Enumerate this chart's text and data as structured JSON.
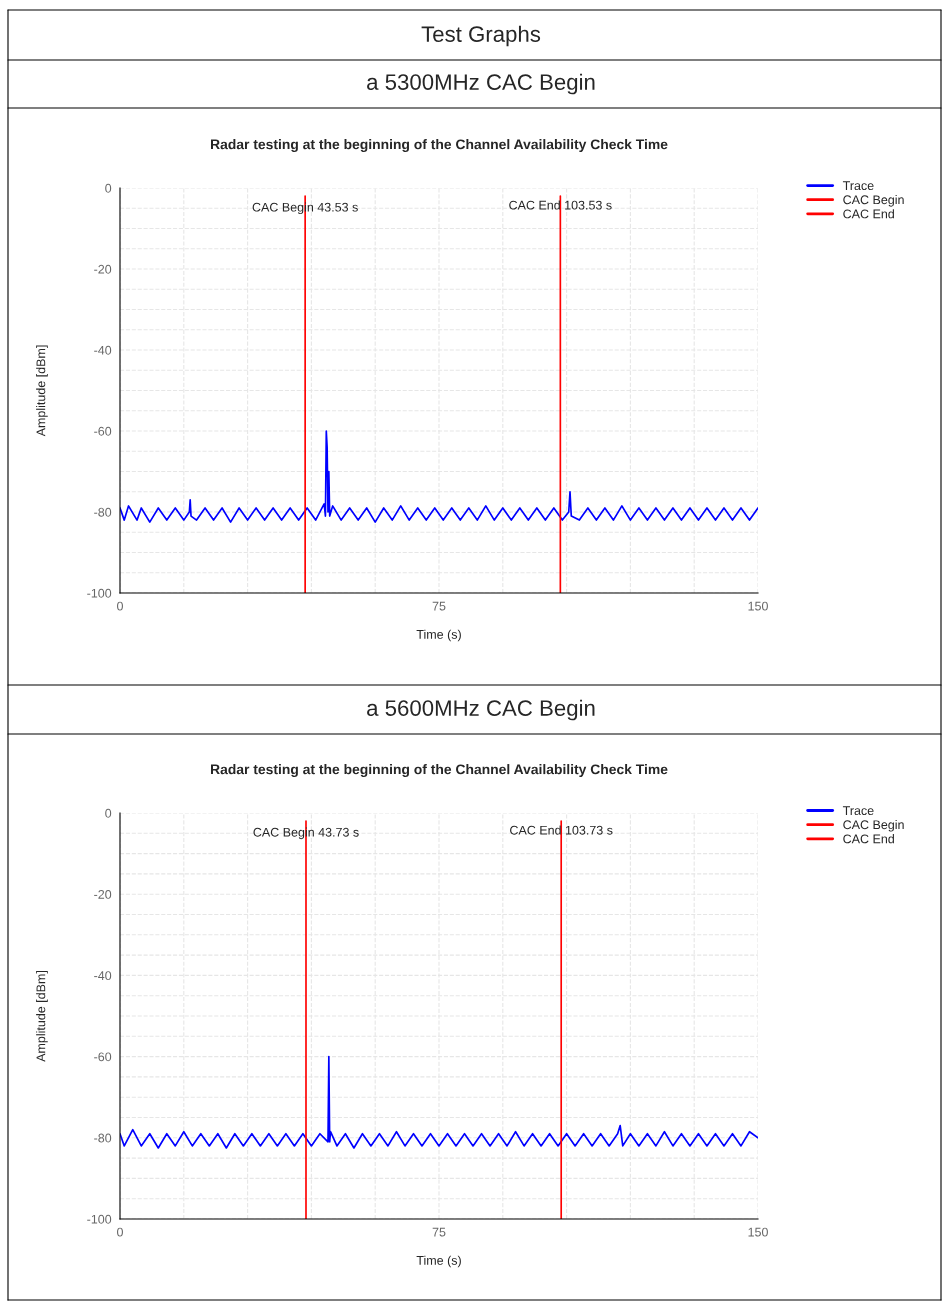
{
  "chart_data": [
    {
      "type": "line",
      "title": "Radar testing at the beginning of the Channel Availability Check Time",
      "subtitle": "a 5300MHz CAC Begin",
      "xlabel": "Time (s)",
      "ylabel": "Amplitude [dBm]",
      "annotations": [
        "Test Graphs",
        {
          "text": "CAC Begin 43.53 s",
          "x": 43.53,
          "y": -5
        },
        {
          "text": "CAC End 103.53 s",
          "x": 103.53,
          "y": -4.5
        }
      ],
      "xlim": [
        0,
        150
      ],
      "ylim": [
        -100,
        0
      ],
      "xticks": [
        0,
        {
          "value": 15,
          "label": null
        },
        {
          "value": 30,
          "label": null
        },
        {
          "value": 45,
          "label": null
        },
        {
          "value": 60,
          "label": null
        },
        75,
        {
          "value": 90,
          "label": null
        },
        {
          "value": 105,
          "label": null
        },
        {
          "value": 120,
          "label": null
        },
        {
          "value": 135,
          "label": null
        },
        150
      ],
      "yticks": [
        -100,
        {
          "value": -95,
          "label": null
        },
        {
          "value": -90,
          "label": null
        },
        {
          "value": -85,
          "label": null
        },
        -80,
        {
          "value": -75,
          "label": null
        },
        {
          "value": -70,
          "label": null
        },
        {
          "value": -65,
          "label": null
        },
        -60,
        {
          "value": -55,
          "label": null
        },
        {
          "value": -50,
          "label": null
        },
        {
          "value": -45,
          "label": null
        },
        -40,
        {
          "value": -35,
          "label": null
        },
        {
          "value": -30,
          "label": null
        },
        {
          "value": -25,
          "label": null
        },
        -20,
        {
          "value": -15,
          "label": null
        },
        {
          "value": -10,
          "label": null
        },
        {
          "value": -5,
          "label": null
        },
        0
      ],
      "grid": true,
      "legend": "top right",
      "series": [
        {
          "name": "Trace",
          "color": "#0000ff",
          "x": [
            0,
            1,
            2,
            4,
            5,
            7,
            9,
            11,
            13,
            15,
            16.3,
            16.5,
            16.7,
            18,
            20,
            22,
            24,
            26,
            28,
            30,
            32,
            34,
            36,
            38,
            40,
            42,
            44,
            46,
            47.5,
            48.0,
            48.3,
            48.5,
            48.7,
            48.9,
            49.1,
            49.3,
            50,
            52,
            54,
            56,
            58,
            60,
            62,
            64,
            66,
            68,
            70,
            72,
            74,
            76,
            78,
            80,
            82,
            84,
            86,
            88,
            90,
            92,
            94,
            96,
            98,
            100,
            102,
            104,
            105.5,
            105.8,
            106.1,
            108,
            110,
            112,
            114,
            116,
            118,
            120,
            122,
            124,
            126,
            128,
            130,
            132,
            134,
            136,
            138,
            140,
            142,
            144,
            146,
            148,
            150
          ],
          "values": [
            -79,
            -82,
            -78.5,
            -82,
            -79,
            -82.5,
            -79,
            -82,
            -79,
            -82,
            -80,
            -77,
            -81,
            -82,
            -79,
            -82,
            -79,
            -82.5,
            -79,
            -82,
            -79,
            -82,
            -79,
            -82,
            -79,
            -82,
            -79,
            -82,
            -79,
            -78,
            -81,
            -60,
            -64,
            -80,
            -70,
            -81,
            -78.5,
            -82,
            -79,
            -82,
            -79,
            -82.5,
            -79,
            -82,
            -78.5,
            -82,
            -79,
            -82,
            -79,
            -82,
            -79,
            -82,
            -79,
            -82,
            -78.5,
            -82,
            -79,
            -82,
            -79,
            -82,
            -79,
            -82,
            -79,
            -82,
            -80,
            -75,
            -81,
            -82,
            -79,
            -82,
            -79,
            -82,
            -78.5,
            -82,
            -79,
            -82,
            -79,
            -82,
            -79,
            -82,
            -79,
            -82,
            -79,
            -82,
            -79,
            -82,
            -79,
            -82,
            -79
          ]
        },
        {
          "name": "CAC Begin",
          "color": "#ff0000",
          "x": [
            43.53,
            43.53
          ],
          "values": [
            -2,
            -100
          ]
        },
        {
          "name": "CAC End",
          "color": "#ff0000",
          "x": [
            103.53,
            103.53
          ],
          "values": [
            -2,
            -100
          ]
        }
      ]
    },
    {
      "type": "line",
      "title": "Radar testing at the beginning of the Channel Availability Check Time",
      "subtitle": "a 5600MHz CAC Begin",
      "xlabel": "Time (s)",
      "ylabel": "Amplitude [dBm]",
      "annotations": [
        {
          "text": "CAC Begin 43.73 s",
          "x": 43.73,
          "y": -5
        },
        {
          "text": "CAC End 103.73 s",
          "x": 103.73,
          "y": -4.5
        }
      ],
      "xlim": [
        0,
        150
      ],
      "ylim": [
        -100,
        0
      ],
      "xticks": [
        0,
        {
          "value": 15,
          "label": null
        },
        {
          "value": 30,
          "label": null
        },
        {
          "value": 45,
          "label": null
        },
        {
          "value": 60,
          "label": null
        },
        75,
        {
          "value": 90,
          "label": null
        },
        {
          "value": 105,
          "label": null
        },
        {
          "value": 120,
          "label": null
        },
        {
          "value": 135,
          "label": null
        },
        150
      ],
      "yticks": [
        -100,
        {
          "value": -95,
          "label": null
        },
        {
          "value": -90,
          "label": null
        },
        {
          "value": -85,
          "label": null
        },
        -80,
        {
          "value": -75,
          "label": null
        },
        {
          "value": -70,
          "label": null
        },
        {
          "value": -65,
          "label": null
        },
        -60,
        {
          "value": -55,
          "label": null
        },
        {
          "value": -50,
          "label": null
        },
        {
          "value": -45,
          "label": null
        },
        -40,
        {
          "value": -35,
          "label": null
        },
        {
          "value": -30,
          "label": null
        },
        {
          "value": -25,
          "label": null
        },
        -20,
        {
          "value": -15,
          "label": null
        },
        {
          "value": -10,
          "label": null
        },
        {
          "value": -5,
          "label": null
        },
        0
      ],
      "grid": true,
      "legend": "top right",
      "series": [
        {
          "name": "Trace",
          "color": "#0000ff",
          "x": [
            0,
            1,
            3,
            5,
            7,
            9,
            11,
            13,
            15,
            17,
            19,
            21,
            23,
            25,
            27,
            29,
            31,
            33,
            35,
            37,
            39,
            41,
            43,
            45,
            47,
            48.9,
            49.1,
            49.3,
            49.5,
            51,
            53,
            55,
            57,
            59,
            61,
            63,
            65,
            67,
            69,
            71,
            73,
            75,
            77,
            79,
            81,
            83,
            85,
            87,
            89,
            91,
            93,
            95,
            97,
            99,
            101,
            103,
            105,
            107,
            109,
            111,
            113,
            115,
            117,
            117.6,
            118.2,
            120,
            122,
            124,
            126,
            128,
            130,
            132,
            134,
            136,
            138,
            140,
            142,
            144,
            146,
            148,
            150
          ],
          "values": [
            -79,
            -82,
            -78,
            -82,
            -79,
            -82.5,
            -79,
            -82,
            -78.5,
            -82,
            -79,
            -82,
            -79,
            -82.5,
            -79,
            -82,
            -79,
            -82,
            -79,
            -82,
            -79,
            -82,
            -79,
            -82,
            -79,
            -81,
            -60,
            -81,
            -78.5,
            -82,
            -79,
            -82.5,
            -79,
            -82,
            -79,
            -82,
            -78.5,
            -82,
            -79,
            -82,
            -79,
            -82,
            -79,
            -82,
            -79,
            -82,
            -79,
            -82,
            -79,
            -82,
            -78.5,
            -82,
            -79,
            -82,
            -79,
            -82,
            -79,
            -82,
            -79,
            -82,
            -79,
            -82,
            -79,
            -77,
            -82,
            -79,
            -82,
            -79,
            -82,
            -78.5,
            -82,
            -79,
            -82,
            -79,
            -82,
            -79,
            -82,
            -79,
            -82,
            -78.5,
            -80
          ]
        },
        {
          "name": "CAC Begin",
          "color": "#ff0000",
          "x": [
            43.73,
            43.73
          ],
          "values": [
            -2,
            -100
          ]
        },
        {
          "name": "CAC End",
          "color": "#ff0000",
          "x": [
            103.73,
            103.73
          ],
          "values": [
            -2,
            -100
          ]
        }
      ]
    }
  ]
}
